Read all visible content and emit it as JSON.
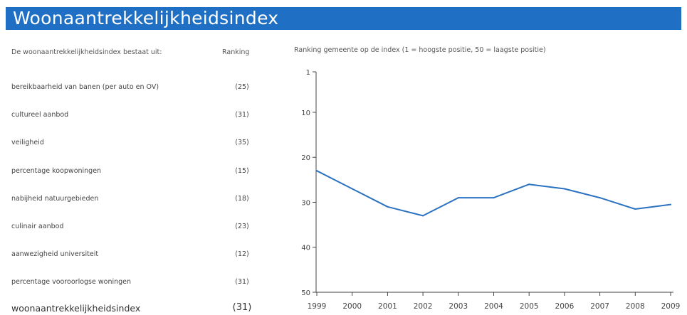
{
  "title": "Woonaantrekkelijkheidsindex",
  "table": {
    "header_left": "De woonaantrekkelijkheidsindex bestaat uit:",
    "header_right": "Ranking",
    "rows": [
      {
        "label": "bereikbaarheid van banen (per auto en OV)",
        "rank": "(25)"
      },
      {
        "label": "cultureel aanbod",
        "rank": "(31)"
      },
      {
        "label": "veiligheid",
        "rank": "(35)"
      },
      {
        "label": "percentage koopwoningen",
        "rank": "(15)"
      },
      {
        "label": "nabijheid natuurgebieden",
        "rank": "(18)"
      },
      {
        "label": "culinair aanbod",
        "rank": "(23)"
      },
      {
        "label": "aanwezigheid universiteit",
        "rank": "(12)"
      },
      {
        "label": "percentage vooroorlogse woningen",
        "rank": "(31)"
      }
    ],
    "total": {
      "label": "woonaantrekkelijkheidsindex",
      "rank": "(31)"
    }
  },
  "chart_data": {
    "type": "line",
    "title": "Ranking gemeente op de index (1 = hoogste positie, 50 = laagste positie)",
    "x": [
      "1999",
      "2000",
      "2001",
      "2002",
      "2003",
      "2004",
      "2005",
      "2006",
      "2007",
      "2008",
      "2009"
    ],
    "series": [
      {
        "values": [
          23,
          27,
          31,
          33,
          29,
          29,
          26,
          27,
          29,
          31.5,
          30.5
        ]
      }
    ],
    "ylim": [
      1,
      50
    ],
    "y_inverted": true,
    "yticks": [
      "1",
      "10",
      "20",
      "30",
      "40",
      "50"
    ],
    "ytick_values": [
      1,
      10,
      20,
      30,
      40,
      50
    ],
    "grid": false,
    "line_color": "#2b72c2",
    "axis_color": "#444444"
  }
}
